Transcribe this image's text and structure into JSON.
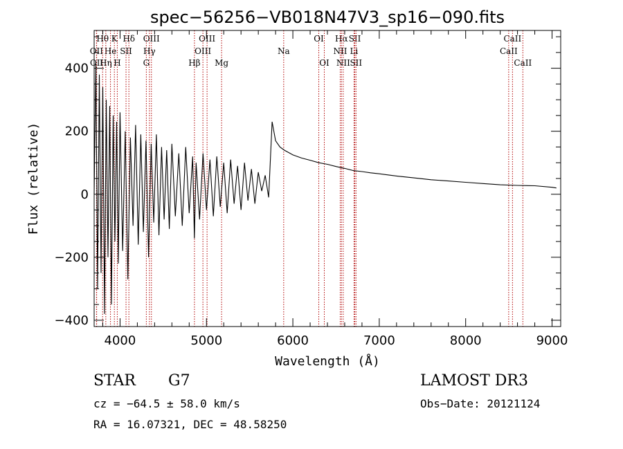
{
  "chart_data": {
    "type": "line",
    "title": "spec−56256−VB018N47V3_sp16−090.fits",
    "xlabel": "Wavelength (Å)",
    "ylabel": "Flux (relative)",
    "xlim": [
      3700,
      9100
    ],
    "ylim": [
      -420,
      520
    ],
    "x_ticks": [
      4000,
      5000,
      6000,
      7000,
      8000,
      9000
    ],
    "y_ticks": [
      -400,
      -200,
      0,
      200,
      400
    ],
    "y_tick_labels": [
      "−400",
      "−200",
      "0",
      "200",
      "400"
    ],
    "series": [
      {
        "name": "flux",
        "x": [
          3700,
          3720,
          3740,
          3760,
          3780,
          3800,
          3820,
          3840,
          3860,
          3880,
          3900,
          3920,
          3940,
          3960,
          3980,
          4000,
          4030,
          4060,
          4090,
          4120,
          4150,
          4180,
          4210,
          4240,
          4270,
          4300,
          4330,
          4360,
          4390,
          4420,
          4450,
          4480,
          4510,
          4540,
          4570,
          4600,
          4640,
          4680,
          4720,
          4760,
          4800,
          4840,
          4860,
          4880,
          4920,
          4960,
          5000,
          5040,
          5080,
          5120,
          5160,
          5200,
          5240,
          5280,
          5320,
          5360,
          5400,
          5440,
          5480,
          5520,
          5560,
          5600,
          5640,
          5680,
          5720,
          5760,
          5780,
          5800,
          5850,
          5900,
          6000,
          6100,
          6200,
          6300,
          6400,
          6500,
          6600,
          6700,
          6800,
          6900,
          7000,
          7200,
          7400,
          7600,
          7800,
          8000,
          8200,
          8400,
          8600,
          8800,
          9000,
          9050
        ],
        "y": [
          0,
          420,
          -300,
          380,
          -250,
          340,
          -380,
          300,
          -200,
          280,
          -350,
          250,
          -150,
          230,
          -220,
          260,
          -180,
          200,
          -270,
          180,
          -100,
          220,
          -160,
          190,
          -120,
          170,
          -200,
          160,
          -90,
          190,
          -130,
          150,
          -80,
          140,
          -110,
          160,
          -70,
          130,
          -100,
          150,
          -60,
          120,
          -140,
          100,
          -80,
          130,
          -50,
          110,
          -70,
          120,
          -40,
          100,
          -60,
          110,
          -30,
          90,
          -50,
          100,
          -20,
          80,
          -30,
          70,
          10,
          60,
          -10,
          230,
          200,
          170,
          150,
          140,
          125,
          115,
          108,
          100,
          95,
          88,
          82,
          75,
          72,
          68,
          65,
          58,
          52,
          46,
          42,
          38,
          34,
          30,
          28,
          27,
          22,
          20
        ]
      }
    ],
    "lines": [
      {
        "name": "Hθ",
        "wavelength": 3798,
        "row": 0
      },
      {
        "name": "OII",
        "wavelength": 3727,
        "row": 1
      },
      {
        "name": "OII",
        "wavelength": 3729,
        "row": 2
      },
      {
        "name": "K",
        "wavelength": 3934,
        "row": 0
      },
      {
        "name": "He",
        "wavelength": 3889,
        "row": 1
      },
      {
        "name": "Hη",
        "wavelength": 3835,
        "row": 2
      },
      {
        "name": "H",
        "wavelength": 3968,
        "row": 2
      },
      {
        "name": "SII",
        "wavelength": 4069,
        "row": 1
      },
      {
        "name": "Hδ",
        "wavelength": 4102,
        "row": 0
      },
      {
        "name": "OIII",
        "wavelength": 4363,
        "row": 0
      },
      {
        "name": "Hγ",
        "wavelength": 4340,
        "row": 1
      },
      {
        "name": "G",
        "wavelength": 4304,
        "row": 2
      },
      {
        "name": "Hβ",
        "wavelength": 4861,
        "row": 2
      },
      {
        "name": "OIII",
        "wavelength": 5007,
        "row": 0
      },
      {
        "name": "OIII",
        "wavelength": 4959,
        "row": 1
      },
      {
        "name": "Mg",
        "wavelength": 5175,
        "row": 2
      },
      {
        "name": "Na",
        "wavelength": 5894,
        "row": 1
      },
      {
        "name": "OI",
        "wavelength": 6300,
        "row": 0
      },
      {
        "name": "OI",
        "wavelength": 6364,
        "row": 2
      },
      {
        "name": "Hα",
        "wavelength": 6563,
        "row": 0
      },
      {
        "name": "NII",
        "wavelength": 6548,
        "row": 1
      },
      {
        "name": "NII",
        "wavelength": 6583,
        "row": 2
      },
      {
        "name": "SII",
        "wavelength": 6717,
        "row": 0
      },
      {
        "name": "Li",
        "wavelength": 6708,
        "row": 1
      },
      {
        "name": "SII",
        "wavelength": 6731,
        "row": 2
      },
      {
        "name": "CaII",
        "wavelength": 8542,
        "row": 0
      },
      {
        "name": "CaII",
        "wavelength": 8498,
        "row": 1
      },
      {
        "name": "CaII",
        "wavelength": 8662,
        "row": 2
      }
    ]
  },
  "info": {
    "class": "STAR",
    "subclass": "G7",
    "survey": "LAMOST DR3",
    "cz": "cz = −64.5 ± 58.0 km/s",
    "obs_date": "Obs−Date: 20121124",
    "radec": "RA =  16.07321, DEC =  48.58250"
  },
  "colors": {
    "spectrum": "#000000",
    "line_marker": "#b00000",
    "axis": "#000000"
  }
}
